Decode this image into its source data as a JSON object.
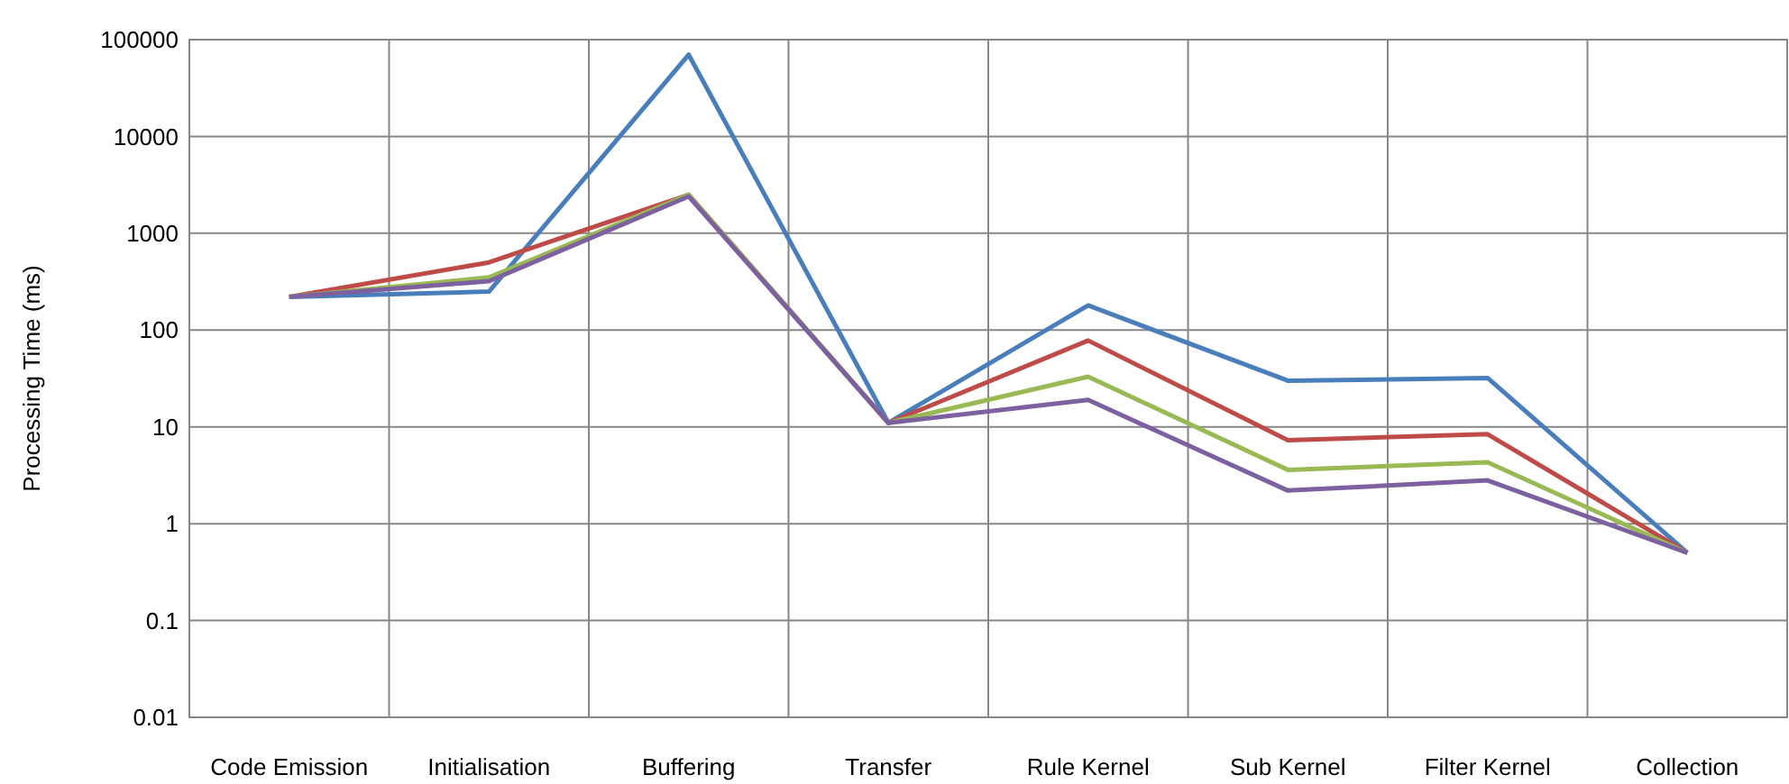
{
  "chart_data": {
    "type": "line",
    "ylabel": "Processing Time (ms)",
    "categories": [
      "Code Emission",
      "Initialisation",
      "Buffering",
      "Transfer",
      "Rule Kernel",
      "Sub Kernel",
      "Filter Kernel",
      "Collection"
    ],
    "log": true,
    "ylim": [
      0.01,
      100000
    ],
    "yticks": [
      0.01,
      0.1,
      1,
      10,
      100,
      1000,
      10000,
      100000
    ],
    "grid": true,
    "marker": "none",
    "line_style": "solid",
    "series": [
      {
        "color": "#4a7ebb",
        "values": [
          220,
          250,
          70000,
          11,
          180,
          30,
          32,
          0.5
        ]
      },
      {
        "color": "#be4b48",
        "values": [
          220,
          500,
          2500,
          11,
          78,
          7.3,
          8.4,
          0.5
        ]
      },
      {
        "color": "#98b954",
        "values": [
          220,
          350,
          2500,
          11,
          33,
          3.6,
          4.3,
          0.5
        ]
      },
      {
        "color": "#7d60a0",
        "values": [
          220,
          320,
          2400,
          11,
          19,
          2.2,
          2.8,
          0.5
        ]
      }
    ]
  }
}
